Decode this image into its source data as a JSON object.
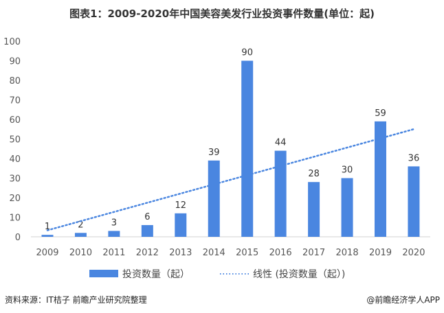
{
  "chart_data": {
    "type": "bar",
    "title": "图表1：2009-2020年中国美容美发行业投资事件数量(单位：起)",
    "categories": [
      "2009",
      "2010",
      "2011",
      "2012",
      "2013",
      "2014",
      "2015",
      "2016",
      "2017",
      "2018",
      "2019",
      "2020"
    ],
    "series": [
      {
        "name": "投资数量（起）",
        "values": [
          1,
          2,
          3,
          6,
          12,
          39,
          90,
          44,
          28,
          30,
          59,
          36
        ],
        "color": "#4a86e0"
      }
    ],
    "trendline": {
      "name": "线性 (投资数量（起）)",
      "type": "linear",
      "style": "dotted",
      "color": "#4a86e0"
    },
    "ylim": [
      0,
      100
    ],
    "yticks": [
      0,
      10,
      20,
      30,
      40,
      50,
      60,
      70,
      80,
      90,
      100
    ],
    "grid": false,
    "legend": "bottom",
    "data_labels": true
  },
  "footer": {
    "source": "资料来源：IT桔子 前瞻产业研究院整理",
    "credit": "@前瞻经济学人APP"
  }
}
